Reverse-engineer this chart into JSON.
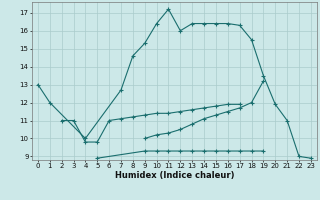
{
  "xlabel": "Humidex (Indice chaleur)",
  "bg_color": "#cce8e8",
  "line_color": "#1a6e6e",
  "grid_color": "#aacccc",
  "ylim": [
    8.8,
    17.6
  ],
  "xlim": [
    -0.5,
    23.5
  ],
  "yticks": [
    9,
    10,
    11,
    12,
    13,
    14,
    15,
    16,
    17
  ],
  "xticks": [
    0,
    1,
    2,
    3,
    4,
    5,
    6,
    7,
    8,
    9,
    10,
    11,
    12,
    13,
    14,
    15,
    16,
    17,
    18,
    19,
    20,
    21,
    22,
    23
  ],
  "line1_x": [
    0,
    1,
    4,
    7,
    8,
    9,
    10,
    11,
    12,
    13,
    14,
    15,
    16,
    17,
    18,
    19,
    20,
    21,
    22,
    23
  ],
  "line1_y": [
    13.0,
    12.0,
    10.0,
    12.7,
    14.6,
    15.3,
    16.4,
    17.2,
    16.0,
    16.4,
    16.4,
    16.4,
    16.4,
    16.3,
    15.5,
    13.5,
    11.9,
    11.0,
    9.0,
    8.9
  ],
  "line3_x": [
    2,
    3,
    4,
    5,
    6,
    7,
    8,
    9,
    10,
    11,
    12,
    13,
    14,
    15,
    16,
    17
  ],
  "line3_y": [
    11.0,
    11.0,
    9.8,
    9.8,
    11.0,
    11.1,
    11.2,
    11.3,
    11.4,
    11.4,
    11.5,
    11.6,
    11.7,
    11.8,
    11.9,
    11.9
  ],
  "line4_x": [
    9,
    10,
    11,
    12,
    13,
    14,
    15,
    16,
    17,
    18,
    19
  ],
  "line4_y": [
    10.0,
    10.2,
    10.3,
    10.5,
    10.8,
    11.1,
    11.3,
    11.5,
    11.7,
    12.0,
    13.2
  ],
  "line5_x": [
    5,
    9,
    10,
    11,
    12,
    13,
    14,
    15,
    16,
    17,
    18,
    19
  ],
  "line5_y": [
    8.9,
    9.3,
    9.3,
    9.3,
    9.3,
    9.3,
    9.3,
    9.3,
    9.3,
    9.3,
    9.3,
    9.3
  ]
}
